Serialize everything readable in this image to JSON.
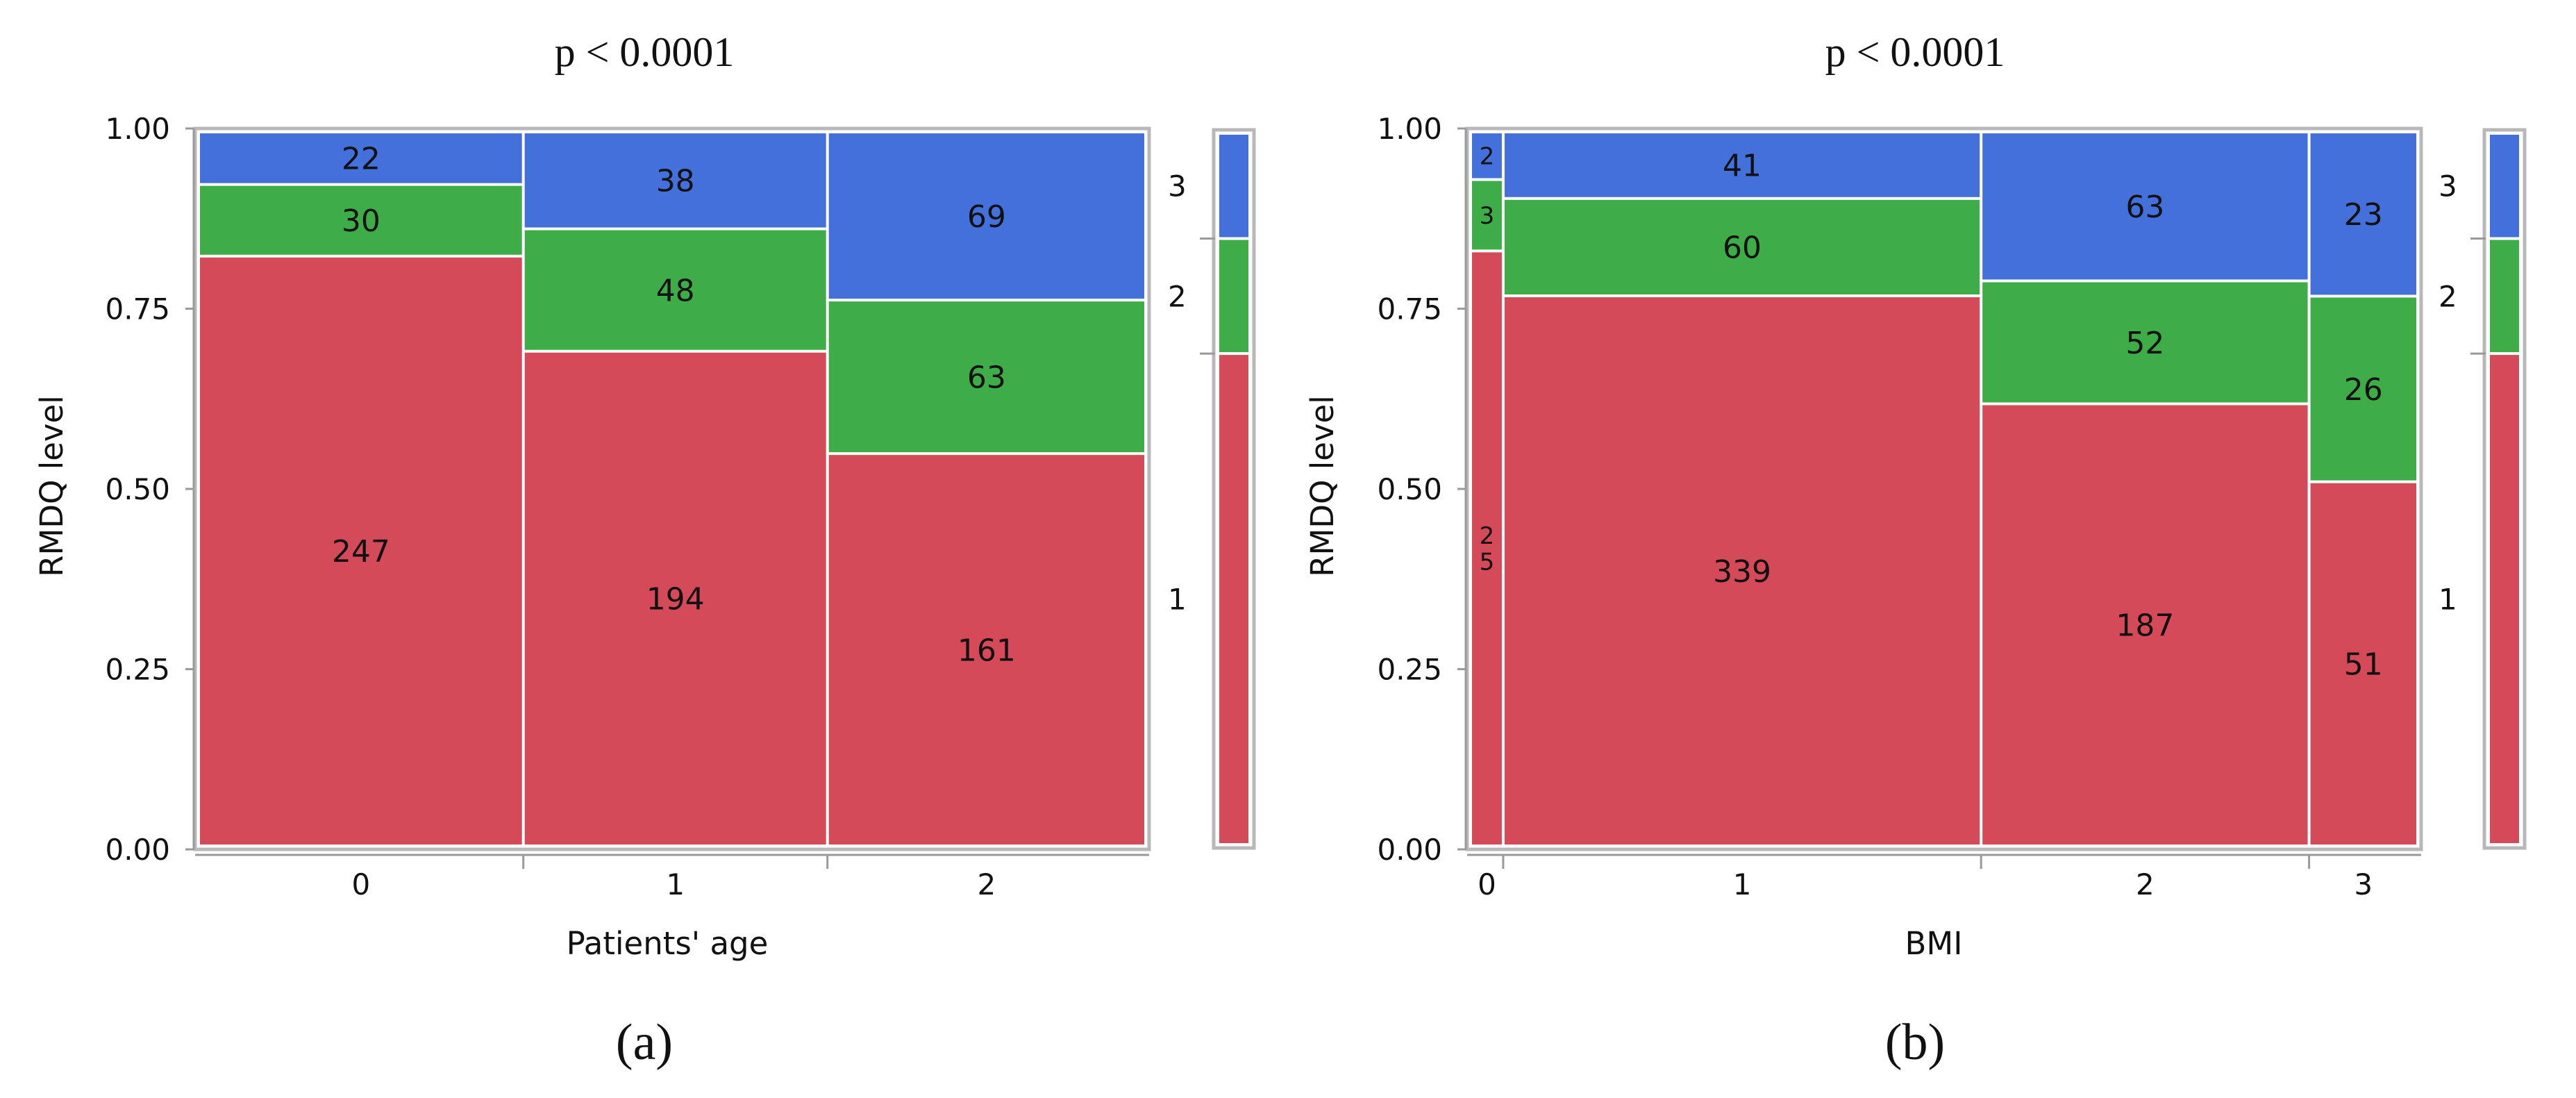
{
  "colors": {
    "level_1": "#d44a58",
    "level_2": "#3eac47",
    "level_3": "#4470dc",
    "frame": "#b8b8b8",
    "axis": "#9a9a9a"
  },
  "chart_data": [
    {
      "type": "mosaic",
      "panel_label": "(a)",
      "title": "p < 0.0001",
      "xlabel": "Patients' age",
      "ylabel": "RMDQ level",
      "ylim": [
        0,
        1
      ],
      "yticks": [
        "0.00",
        "0.25",
        "0.50",
        "0.75",
        "1.00"
      ],
      "categories": [
        "0",
        "1",
        "2"
      ],
      "levels": [
        "1",
        "2",
        "3"
      ],
      "series": [
        {
          "name": "1",
          "values": [
            247,
            194,
            161
          ]
        },
        {
          "name": "2",
          "values": [
            30,
            48,
            63
          ]
        },
        {
          "name": "3",
          "values": [
            22,
            38,
            69
          ]
        }
      ],
      "cell_labels": [
        [
          "247",
          "194",
          "161"
        ],
        [
          "30",
          "48",
          "63"
        ],
        [
          "22",
          "38",
          "69"
        ]
      ],
      "legend_position": "right"
    },
    {
      "type": "mosaic",
      "panel_label": "(b)",
      "title": "p < 0.0001",
      "xlabel": "BMI",
      "ylabel": "RMDQ level",
      "ylim": [
        0,
        1
      ],
      "yticks": [
        "0.00",
        "0.25",
        "0.50",
        "0.75",
        "1.00"
      ],
      "categories": [
        "0",
        "1",
        "2",
        "3"
      ],
      "levels": [
        "1",
        "2",
        "3"
      ],
      "series": [
        {
          "name": "1",
          "values": [
            25,
            339,
            187,
            51
          ]
        },
        {
          "name": "2",
          "values": [
            3,
            60,
            52,
            26
          ]
        },
        {
          "name": "3",
          "values": [
            2,
            41,
            63,
            23
          ]
        }
      ],
      "cell_labels": [
        [
          "2\n5",
          "339",
          "187",
          "51"
        ],
        [
          "3",
          "60",
          "52",
          "26"
        ],
        [
          "2",
          "41",
          "63",
          "23"
        ]
      ],
      "legend_position": "right"
    }
  ]
}
